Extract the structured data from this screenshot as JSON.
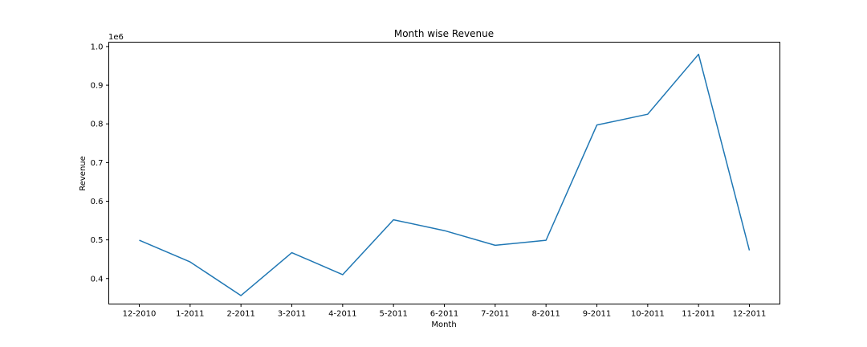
{
  "chart_data": {
    "type": "line",
    "title": "Month wise Revenue",
    "xlabel": "Month",
    "ylabel": "Revenue",
    "y_offset_label": "1e6",
    "categories": [
      "12-2010",
      "1-2011",
      "2-2011",
      "3-2011",
      "4-2011",
      "5-2011",
      "6-2011",
      "7-2011",
      "8-2011",
      "9-2011",
      "10-2011",
      "11-2011",
      "12-2011"
    ],
    "series": [
      {
        "values": [
          499000,
          443000,
          356000,
          467000,
          410000,
          552000,
          524000,
          486000,
          499000,
          797000,
          825000,
          980000,
          473000
        ],
        "color": "#1f77b4"
      }
    ],
    "ylim": [
      334100,
      1011300
    ],
    "yticks": [
      0.4,
      0.5,
      0.6,
      0.7,
      0.8,
      0.9,
      1.0
    ],
    "ytick_labels": [
      "0.4",
      "0.5",
      "0.6",
      "0.7",
      "0.8",
      "0.9",
      "1.0"
    ],
    "grid": false,
    "legend": false
  }
}
